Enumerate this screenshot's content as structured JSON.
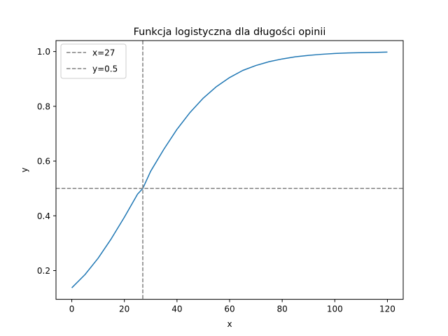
{
  "chart_data": {
    "type": "line",
    "title": "Funkcja logistyczna dla długości opinii",
    "xlabel": "x",
    "ylabel": "y",
    "xlim": [
      -6,
      126
    ],
    "ylim": [
      0.095,
      1.04
    ],
    "xticks": [
      0,
      20,
      40,
      60,
      80,
      100,
      120
    ],
    "yticks": [
      0.2,
      0.4,
      0.6,
      0.8,
      1.0
    ],
    "xtick_labels": [
      "0",
      "20",
      "40",
      "60",
      "80",
      "100",
      "120"
    ],
    "ytick_labels": [
      "0.2",
      "0.4",
      "0.6",
      "0.8",
      "1.0"
    ],
    "grid": false,
    "legend_position": "top-left",
    "series": [
      {
        "color": "#1f77b4",
        "x": [
          0,
          5,
          10,
          15,
          20,
          25,
          27,
          30,
          35,
          40,
          45,
          50,
          55,
          60,
          65,
          70,
          75,
          80,
          85,
          90,
          95,
          100,
          105,
          110,
          115,
          120
        ],
        "y": [
          0.137,
          0.185,
          0.245,
          0.316,
          0.395,
          0.479,
          0.5,
          0.563,
          0.643,
          0.716,
          0.778,
          0.83,
          0.872,
          0.905,
          0.931,
          0.949,
          0.963,
          0.973,
          0.981,
          0.986,
          0.99,
          0.993,
          0.995,
          0.996,
          0.997,
          0.998
        ]
      }
    ],
    "reference_lines": [
      {
        "name": "x=27",
        "orientation": "vertical",
        "value": 27,
        "color": "#808080"
      },
      {
        "name": "y=0.5",
        "orientation": "horizontal",
        "value": 0.5,
        "color": "#808080"
      }
    ]
  }
}
